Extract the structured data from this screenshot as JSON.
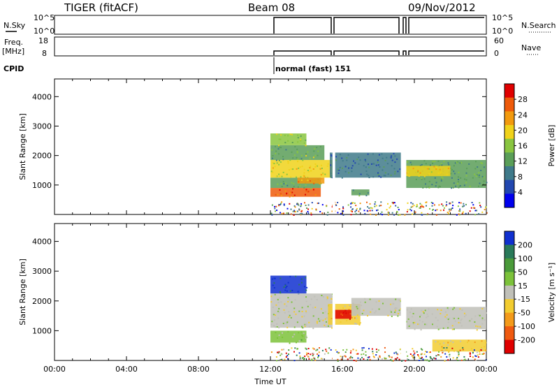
{
  "header": {
    "title": "TIGER (fitACF)",
    "beam": "Beam 08",
    "date": "09/Nov/2012"
  },
  "strip_panels": {
    "nsky_label": "N.Sky",
    "nsky_ticks": [
      "10^5",
      "10^0"
    ],
    "nsearch_label": "N.Search",
    "freq_label": "Freq.",
    "freq_unit": "[MHz]",
    "freq_ticks": [
      "18",
      "8"
    ],
    "nave_ticks": [
      "60",
      "0"
    ],
    "nave_label": "Nave",
    "cpid_label": "CPID",
    "cpid_text": "normal (fast) 151"
  },
  "colors": {
    "power_scale": [
      "#0000ee",
      "#2247b0",
      "#3f7a8a",
      "#5a9e58",
      "#89c540",
      "#f0d21a",
      "#f29a0e",
      "#ee5a0a",
      "#e00000"
    ],
    "velocity_scale": [
      "#1030d0",
      "#2a7a5a",
      "#4a9a3a",
      "#7cc23a",
      "#c0c0b8",
      "#f2cc30",
      "#f39a1a",
      "#ef5a10",
      "#e00000"
    ]
  },
  "chart_data": [
    {
      "type": "heatmap",
      "title": "",
      "xlabel": "Time UT",
      "ylabel": "Slant Range [km]",
      "colorbar_label": "Power [dB]",
      "colorbar_ticks": [
        "28",
        "24",
        "20",
        "16",
        "12",
        "8",
        "4"
      ],
      "colorbar_range": [
        0,
        32
      ],
      "xlim": [
        0,
        24
      ],
      "ylim": [
        0,
        4600
      ],
      "x_ticks": [
        "00:00",
        "04:00",
        "08:00",
        "12:00",
        "16:00",
        "20:00",
        "00:00"
      ],
      "y_ticks": [
        "1000",
        "2000",
        "3000",
        "4000"
      ],
      "regions": [
        {
          "t0": 12.0,
          "t1": 14.8,
          "r0": 600,
          "r1": 900,
          "value": 26
        },
        {
          "t0": 12.0,
          "t1": 14.8,
          "r0": 900,
          "r1": 1250,
          "value": 14
        },
        {
          "t0": 12.0,
          "t1": 15.5,
          "r0": 1250,
          "r1": 1850,
          "value": 18
        },
        {
          "t0": 12.0,
          "t1": 15.0,
          "r0": 1850,
          "r1": 2350,
          "value": 14
        },
        {
          "t0": 12.0,
          "t1": 14.0,
          "r0": 2350,
          "r1": 2750,
          "value": 16
        },
        {
          "t0": 13.5,
          "t1": 15.0,
          "r0": 1050,
          "r1": 1250,
          "value": 24
        },
        {
          "t0": 15.3,
          "t1": 19.3,
          "r0": 1250,
          "r1": 2100,
          "value": 8
        },
        {
          "t0": 16.5,
          "t1": 17.5,
          "r0": 650,
          "r1": 850,
          "value": 12
        },
        {
          "t0": 19.5,
          "t1": 24.0,
          "r0": 900,
          "r1": 1850,
          "value": 12
        },
        {
          "t0": 19.5,
          "t1": 22.0,
          "r0": 1300,
          "r1": 1650,
          "value": 20
        }
      ]
    },
    {
      "type": "heatmap",
      "title": "",
      "xlabel": "Time UT",
      "ylabel": "Slant Range [km]",
      "colorbar_label": "Velocity [m s⁻¹]",
      "colorbar_ticks": [
        "200",
        "100",
        "50",
        "15",
        "-15",
        "-50",
        "-100",
        "-200"
      ],
      "colorbar_range": [
        -250,
        250
      ],
      "xlim": [
        0,
        24
      ],
      "ylim": [
        0,
        4600
      ],
      "x_ticks": [
        "00:00",
        "04:00",
        "08:00",
        "12:00",
        "16:00",
        "20:00",
        "00:00"
      ],
      "y_ticks": [
        "1000",
        "2000",
        "3000",
        "4000"
      ],
      "regions": [
        {
          "t0": 12.0,
          "t1": 14.0,
          "r0": 2250,
          "r1": 2850,
          "value": 200
        },
        {
          "t0": 12.0,
          "t1": 15.5,
          "r0": 1100,
          "r1": 2250,
          "value": 0
        },
        {
          "t0": 12.0,
          "t1": 14.0,
          "r0": 600,
          "r1": 1000,
          "value": 30
        },
        {
          "t0": 15.2,
          "t1": 17.0,
          "r0": 1200,
          "r1": 1900,
          "value": -60
        },
        {
          "t0": 15.5,
          "t1": 16.5,
          "r0": 1400,
          "r1": 1700,
          "value": -200
        },
        {
          "t0": 16.5,
          "t1": 19.3,
          "r0": 1500,
          "r1": 2100,
          "value": 0
        },
        {
          "t0": 19.5,
          "t1": 24.0,
          "r0": 1050,
          "r1": 1800,
          "value": 0
        },
        {
          "t0": 21.0,
          "t1": 24.0,
          "r0": 300,
          "r1": 700,
          "value": -40
        }
      ]
    }
  ]
}
